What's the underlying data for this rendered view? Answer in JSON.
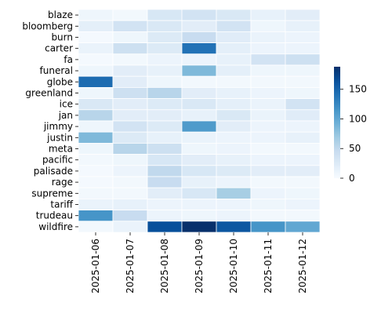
{
  "chart_data": {
    "type": "heatmap",
    "title": "",
    "xlabel": "",
    "ylabel": "",
    "rows": [
      "blaze",
      "bloomberg",
      "burn",
      "carter",
      "fa",
      "funeral",
      "globe",
      "greenland",
      "ice",
      "jan",
      "jimmy",
      "justin",
      "meta",
      "pacific",
      "palisade",
      "rage",
      "supreme",
      "tariff",
      "trudeau",
      "wildfire"
    ],
    "columns": [
      "2025-01-06",
      "2025-01-07",
      "2025-01-08",
      "2025-01-09",
      "2025-01-10",
      "2025-01-11",
      "2025-01-12"
    ],
    "values": [
      [
        8,
        5,
        30,
        35,
        28,
        15,
        20
      ],
      [
        18,
        35,
        28,
        20,
        35,
        8,
        15
      ],
      [
        3,
        8,
        25,
        45,
        22,
        12,
        10
      ],
      [
        12,
        40,
        25,
        140,
        18,
        10,
        10
      ],
      [
        3,
        5,
        10,
        10,
        15,
        35,
        40
      ],
      [
        8,
        20,
        15,
        85,
        18,
        8,
        8
      ],
      [
        145,
        20,
        8,
        5,
        5,
        5,
        5
      ],
      [
        8,
        40,
        55,
        20,
        15,
        10,
        8
      ],
      [
        28,
        20,
        25,
        28,
        18,
        12,
        35
      ],
      [
        55,
        20,
        20,
        15,
        28,
        12,
        22
      ],
      [
        8,
        35,
        25,
        110,
        20,
        10,
        10
      ],
      [
        85,
        25,
        15,
        12,
        10,
        10,
        15
      ],
      [
        8,
        55,
        40,
        8,
        10,
        5,
        5
      ],
      [
        5,
        8,
        30,
        20,
        15,
        10,
        10
      ],
      [
        3,
        10,
        50,
        30,
        25,
        20,
        20
      ],
      [
        3,
        5,
        45,
        15,
        10,
        5,
        5
      ],
      [
        5,
        5,
        20,
        30,
        65,
        10,
        8
      ],
      [
        12,
        15,
        10,
        10,
        10,
        8,
        10
      ],
      [
        115,
        45,
        10,
        8,
        10,
        5,
        5
      ],
      [
        5,
        12,
        165,
        188,
        160,
        115,
        100
      ]
    ],
    "vmin": 0,
    "vmax": 188,
    "colorbar_ticks": [
      0,
      50,
      100,
      150
    ],
    "colormap": "Blues",
    "cell_border_color": "#ffffff"
  }
}
